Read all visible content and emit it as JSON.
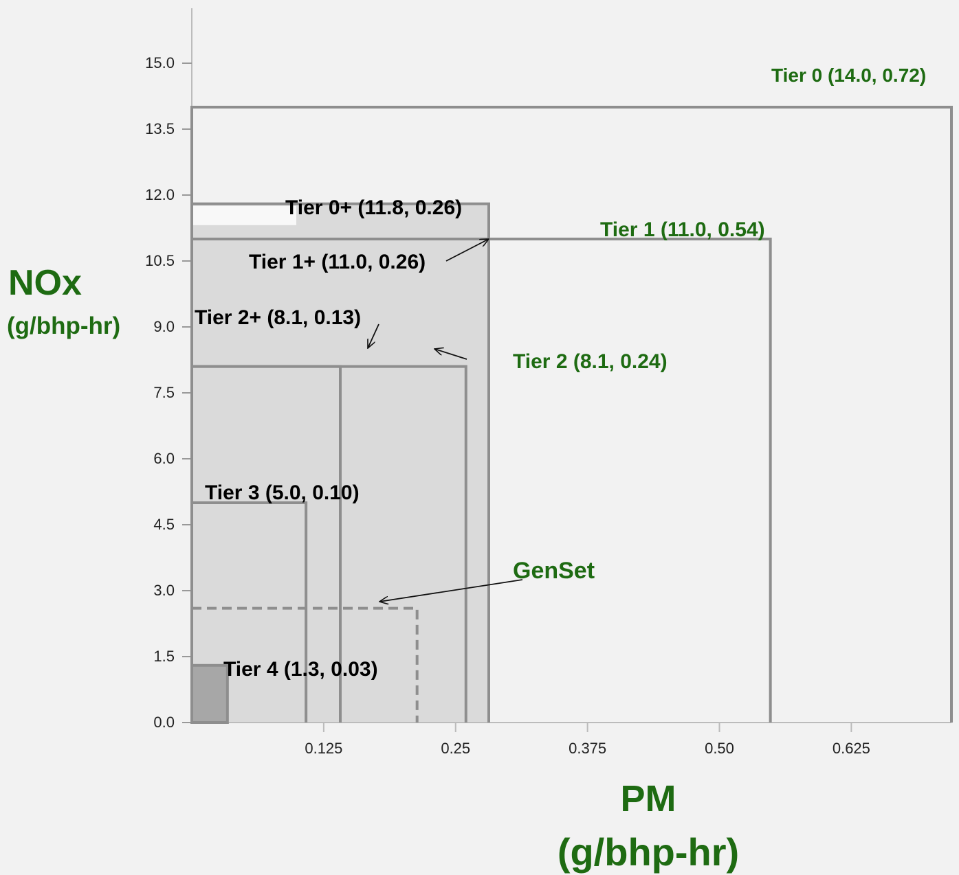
{
  "chart_data": {
    "type": "step",
    "xlabel": "PM",
    "xlabel_unit": "(g/bhp-hr)",
    "ylabel": "NOx",
    "ylabel_unit": "(g/bhp-hr)",
    "xlim": [
      0,
      0.72
    ],
    "ylim": [
      0,
      15.0
    ],
    "xticks": [
      0.125,
      0.25,
      0.375,
      0.5,
      0.625
    ],
    "xtick_labels": [
      "0.125",
      "0.25",
      "0.375",
      "0.50",
      "0.625"
    ],
    "yticks": [
      0,
      1.5,
      3.0,
      4.5,
      6.0,
      7.5,
      9.0,
      10.5,
      12.0,
      13.5,
      15.0
    ],
    "ytick_labels": [
      "0.0",
      "1.5",
      "3.0",
      "4.5",
      "6.0",
      "7.5",
      "9.0",
      "10.5",
      "12.0",
      "13.5",
      "15.0"
    ],
    "series": [
      {
        "name": "Tier 0",
        "label": "Tier 0 (14.0, 0.72)",
        "nox": 14.0,
        "pm": 0.72,
        "label_color": "#1e6b12"
      },
      {
        "name": "Tier 0+",
        "label": "Tier 0+ (11.8, 0.26)",
        "nox": 11.8,
        "pm": 0.26,
        "label_color": "#000000"
      },
      {
        "name": "Tier 1",
        "label": "Tier 1 (11.0, 0.54)",
        "nox": 11.0,
        "pm": 0.54,
        "label_color": "#1e6b12"
      },
      {
        "name": "Tier 1+",
        "label": "Tier 1+ (11.0, 0.26)",
        "nox": 11.0,
        "pm": 0.26,
        "label_color": "#000000"
      },
      {
        "name": "Tier 2+",
        "label": "Tier 2+ (8.1, 0.13)",
        "nox": 8.1,
        "pm": 0.13,
        "label_color": "#000000"
      },
      {
        "name": "Tier 2",
        "label": "Tier 2 (8.1, 0.24)",
        "nox": 8.1,
        "pm": 0.24,
        "label_color": "#1e6b12"
      },
      {
        "name": "Tier 3",
        "label": "Tier 3 (5.0, 0.10)",
        "nox": 5.0,
        "pm": 0.1,
        "label_color": "#000000"
      },
      {
        "name": "Tier 4",
        "label": "Tier 4 (1.3, 0.03)",
        "nox": 1.3,
        "pm": 0.03,
        "label_color": "#000000"
      }
    ],
    "genset": {
      "label": "GenSet",
      "nox": 2.6,
      "pm": 0.19,
      "label_color": "#1e6b12"
    },
    "grid": false,
    "legend": "none"
  }
}
